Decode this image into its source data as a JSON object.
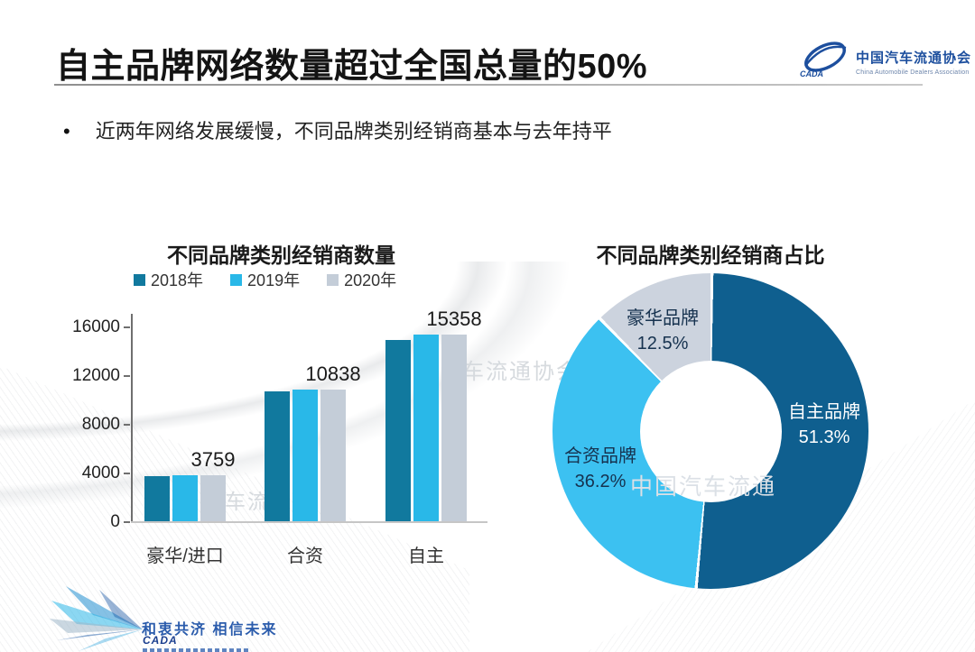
{
  "header": {
    "title": "自主品牌网络数量超过全国总量的50%"
  },
  "org": {
    "name_cn": "中国汽车流通协会",
    "name_en": "China Automobile Dealers Association",
    "brand_color": "#1d4f9e"
  },
  "bullet": {
    "marker": "•",
    "text": "近两年网络发展缓慢，不同品牌类别经销商基本与去年持平"
  },
  "watermarks": {
    "w1": "车流通协会",
    "w2": "中国汽车流通",
    "w3": "车流"
  },
  "chart_data": [
    {
      "type": "bar",
      "title": "不同品牌类别经销商数量",
      "categories": [
        "豪华/进口",
        "合资",
        "自主"
      ],
      "series": [
        {
          "name": "2018年",
          "color": "#11799e",
          "values": [
            3720,
            10700,
            14900
          ]
        },
        {
          "name": "2019年",
          "color": "#29b8e8",
          "values": [
            3759,
            10838,
            15358
          ]
        },
        {
          "name": "2020年",
          "color": "#c4cdd8",
          "values": [
            3759,
            10838,
            15358
          ]
        }
      ],
      "value_labels": [
        "3759",
        "10838",
        "15358"
      ],
      "y_ticks": [
        0,
        4000,
        8000,
        12000,
        16000
      ],
      "ylim": [
        0,
        17000
      ],
      "legend_position": "top",
      "grid": false
    },
    {
      "type": "pie",
      "donut": true,
      "title": "不同品牌类别经销商占比",
      "slices": [
        {
          "label": "自主品牌",
          "value": 51.3,
          "pct_label": "51.3%",
          "color": "#0f5f8f",
          "text_color": "#ffffff"
        },
        {
          "label": "合资品牌",
          "value": 36.2,
          "pct_label": "36.2%",
          "color": "#3cc1f1",
          "text_color": "#16324f"
        },
        {
          "label": "豪华品牌",
          "value": 12.5,
          "pct_label": "12.5%",
          "color": "#ccd3de",
          "text_color": "#16324f"
        }
      ]
    }
  ],
  "footer": {
    "slogan": "和衷共济 相信未来",
    "logo_text": "CADA"
  }
}
